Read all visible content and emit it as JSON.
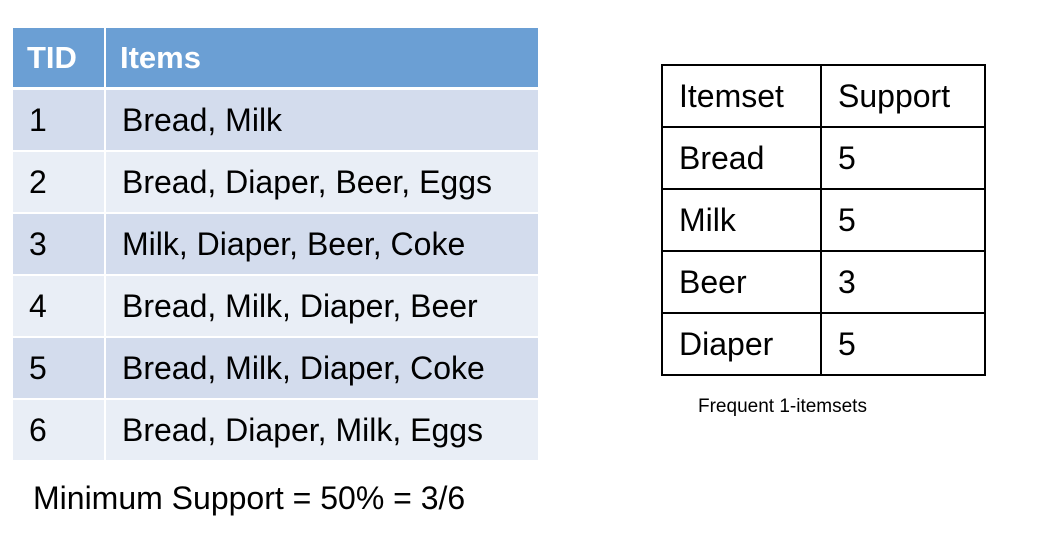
{
  "transactions": {
    "headers": {
      "tid": "TID",
      "items": "Items"
    },
    "rows": [
      {
        "tid": "1",
        "items": "Bread, Milk"
      },
      {
        "tid": "2",
        "items": "Bread, Diaper, Beer, Eggs"
      },
      {
        "tid": "3",
        "items": "Milk, Diaper, Beer, Coke"
      },
      {
        "tid": "4",
        "items": "Bread, Milk, Diaper, Beer"
      },
      {
        "tid": "5",
        "items": "Bread, Milk, Diaper, Coke"
      },
      {
        "tid": "6",
        "items": "Bread, Diaper, Milk, Eggs"
      }
    ]
  },
  "min_support": "Minimum Support = 50% = 3/6",
  "frequent_itemsets": {
    "headers": {
      "itemset": "Itemset",
      "support": "Support"
    },
    "rows": [
      {
        "itemset": "Bread",
        "support": "5"
      },
      {
        "itemset": "Milk",
        "support": "5"
      },
      {
        "itemset": "Beer",
        "support": "3"
      },
      {
        "itemset": "Diaper",
        "support": "5"
      }
    ],
    "caption": "Frequent 1-itemsets"
  },
  "colors": {
    "header_blue": "#6b9fd4",
    "row_band_dark": "#d3dced",
    "row_band_light": "#e9eef6"
  }
}
